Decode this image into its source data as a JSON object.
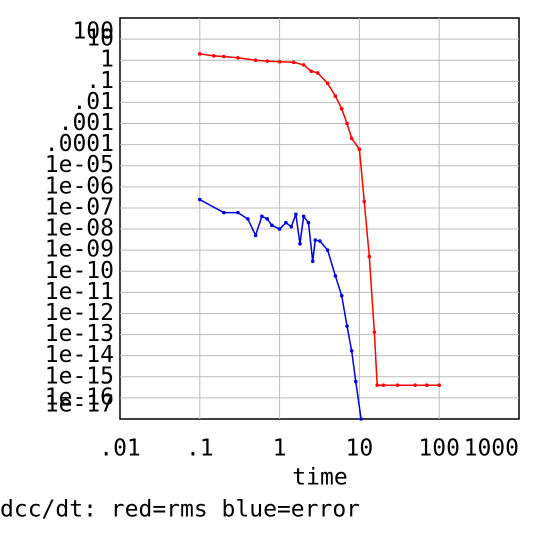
{
  "chart_data": {
    "type": "line",
    "xlabel": "time",
    "caption": "dcc/dt: red=rms blue=error",
    "xscale": "log",
    "yscale": "log",
    "grid": true,
    "xlim": [
      0.01,
      1000
    ],
    "xticks": [
      {
        "value": 0.01,
        "label": ".01"
      },
      {
        "value": 0.1,
        "label": ".1"
      },
      1,
      10,
      100,
      1000
    ],
    "ylim": [
      1e-17,
      100
    ],
    "yticks": [
      100,
      10,
      1,
      {
        "value": 0.1,
        "label": ".1"
      },
      {
        "value": 0.01,
        "label": ".01"
      },
      {
        "value": 0.001,
        "label": ".001"
      },
      {
        "value": 0.0001,
        "label": ".0001"
      },
      {
        "value": 1e-05,
        "label": "1e-05"
      },
      {
        "value": 1e-06,
        "label": "1e-06"
      },
      {
        "value": 1e-07,
        "label": "1e-07"
      },
      {
        "value": 1e-08,
        "label": "1e-08"
      },
      {
        "value": 1e-09,
        "label": "1e-09"
      },
      {
        "value": 1e-10,
        "label": "1e-10"
      },
      {
        "value": 1e-11,
        "label": "1e-11"
      },
      {
        "value": 1e-12,
        "label": "1e-12"
      },
      {
        "value": 1e-13,
        "label": "1e-13"
      },
      {
        "value": 1e-14,
        "label": "1e-14"
      },
      {
        "value": 1e-15,
        "label": "1e-15"
      },
      {
        "value": 1e-16,
        "label": "1e-16"
      },
      {
        "value": 1e-17,
        "label": "1e-17"
      }
    ],
    "series": [
      {
        "color": "#ff0000",
        "x": [
          0.1,
          0.15,
          0.2,
          0.3,
          0.5,
          0.7,
          1,
          1.5,
          2,
          2.5,
          3,
          4,
          5,
          6,
          7,
          8,
          10,
          11.5,
          13.3,
          15.4,
          16.7,
          20,
          30,
          50,
          70,
          100
        ],
        "values": [
          2,
          1.6,
          1.5,
          1.3,
          1.0,
          0.9,
          0.85,
          0.8,
          0.6,
          0.3,
          0.25,
          0.08,
          0.02,
          0.005,
          0.001,
          0.0002,
          6e-05,
          2e-07,
          5e-10,
          1.3e-13,
          4e-16,
          4e-16,
          4e-16,
          4e-16,
          4e-16,
          4e-16
        ]
      },
      {
        "color": "#0000dd",
        "x": [
          0.1,
          0.2,
          0.3,
          0.4,
          0.5,
          0.6,
          0.7,
          0.8,
          1,
          1.2,
          1.4,
          1.6,
          1.8,
          2,
          2.3,
          2.6,
          2.8,
          3.2,
          4,
          5,
          6,
          7,
          8,
          9,
          10.5
        ],
        "values": [
          2.5e-07,
          6e-08,
          6e-08,
          3e-08,
          5e-09,
          4e-08,
          3e-08,
          1.5e-08,
          1e-08,
          2e-08,
          1.3e-08,
          5e-08,
          2e-09,
          4e-08,
          2e-08,
          3e-10,
          3e-09,
          2.7e-09,
          1e-09,
          6e-11,
          7e-12,
          2.5e-13,
          1.7e-14,
          6e-16,
          1e-17
        ]
      }
    ]
  }
}
